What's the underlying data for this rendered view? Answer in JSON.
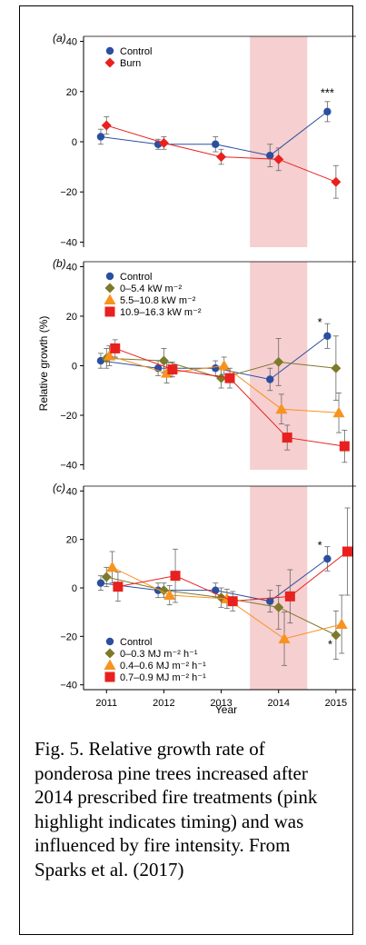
{
  "caption": "Fig. 5. Relative growth rate of ponderosa pine trees increased after 2014 prescribed fire treatments (pink highlight indicates timing) and was influenced by fire intensity. From Sparks et al. (2017)",
  "highlight_color": "#f6cfd0",
  "chart_data": [
    {
      "type": "line",
      "panel_label": "(a)",
      "ylabel": "Relative growth (%)",
      "xlabel": "Year",
      "x_ticks": [
        "2011",
        "2012",
        "2013",
        "2014",
        "2015"
      ],
      "ylim": [
        -42,
        42
      ],
      "y_ticks": [
        40,
        20,
        0,
        -20,
        -40
      ],
      "highlight_x": [
        2013.5,
        2014.5
      ],
      "legend_position": "top-left",
      "annotations": [
        {
          "text": "***",
          "x": 2014.85,
          "y": 18
        }
      ],
      "series": [
        {
          "name": "Control",
          "color": "#2b4fa0",
          "marker": "circle",
          "x": [
            2010.9,
            2011.9,
            2012.9,
            2013.85,
            2014.85
          ],
          "y": [
            2,
            -1,
            -1,
            -5.5,
            12
          ],
          "err": [
            3,
            2,
            3,
            4.5,
            4
          ]
        },
        {
          "name": "Burn",
          "color": "#e8211f",
          "marker": "diamond",
          "x": [
            2011.0,
            2012.0,
            2013.0,
            2014.0,
            2015.0
          ],
          "y": [
            6.5,
            -0.5,
            -6,
            -7,
            -16
          ],
          "err": [
            3.5,
            2.5,
            3,
            4.5,
            6.5
          ]
        }
      ]
    },
    {
      "type": "line",
      "panel_label": "(b)",
      "ylabel": "Relative growth (%)",
      "xlabel": "Year",
      "x_ticks": [
        "2011",
        "2012",
        "2013",
        "2014",
        "2015"
      ],
      "ylim": [
        -42,
        42
      ],
      "y_ticks": [
        40,
        20,
        0,
        -20,
        -40
      ],
      "highlight_x": [
        2013.5,
        2014.5
      ],
      "legend_position": "top-left",
      "annotations": [
        {
          "text": "*",
          "x": 2014.72,
          "y": 16
        }
      ],
      "series": [
        {
          "name": "Control",
          "color": "#2b4fa0",
          "marker": "circle",
          "x": [
            2010.9,
            2011.9,
            2012.9,
            2013.85,
            2014.85
          ],
          "y": [
            2,
            -1,
            -1,
            -5.5,
            12
          ],
          "err": [
            3,
            3,
            3,
            4.5,
            5
          ]
        },
        {
          "name": "0–5.4 kW m⁻²",
          "color": "#7d7a2a",
          "marker": "diamond",
          "x": [
            2011.0,
            2012.0,
            2013.0,
            2014.0,
            2015.0
          ],
          "y": [
            3,
            2,
            -5,
            1.5,
            -1
          ],
          "err": [
            4,
            5,
            4,
            9.5,
            13
          ]
        },
        {
          "name": "5.5–10.8 kW m⁻²",
          "color": "#f7931e",
          "marker": "triangle",
          "x": [
            2011.05,
            2012.05,
            2013.05,
            2014.05,
            2015.05
          ],
          "y": [
            4,
            -3,
            0,
            -17.5,
            -19
          ],
          "err": [
            4,
            4,
            3.5,
            6,
            8
          ]
        },
        {
          "name": "10.9–16.3 kW m⁻²",
          "color": "#e8211f",
          "marker": "square",
          "x": [
            2011.15,
            2012.15,
            2013.15,
            2014.15,
            2015.15
          ],
          "y": [
            7,
            -1.5,
            -5,
            -29,
            -32.5
          ],
          "err": [
            3.5,
            3,
            4,
            5,
            6.5
          ]
        }
      ]
    },
    {
      "type": "line",
      "panel_label": "(c)",
      "ylabel": "Relative growth (%)",
      "xlabel": "Year",
      "x_ticks": [
        "2011",
        "2012",
        "2013",
        "2014",
        "2015"
      ],
      "ylim": [
        -42,
        42
      ],
      "y_ticks": [
        40,
        20,
        0,
        -20,
        -40
      ],
      "highlight_x": [
        2013.5,
        2014.5
      ],
      "legend_position": "bottom-left",
      "annotations": [
        {
          "text": "*",
          "x": 2014.72,
          "y": 16
        },
        {
          "text": "*",
          "x": 2014.9,
          "y": -25
        }
      ],
      "series": [
        {
          "name": "Control",
          "color": "#2b4fa0",
          "marker": "circle",
          "x": [
            2010.9,
            2011.9,
            2012.9,
            2013.85,
            2014.85
          ],
          "y": [
            2,
            -1,
            -1,
            -5.5,
            12
          ],
          "err": [
            3,
            3,
            3,
            4.5,
            5
          ]
        },
        {
          "name": "0–0.3 MJ m⁻² h⁻¹",
          "color": "#7d7a2a",
          "marker": "diamond",
          "x": [
            2011.0,
            2012.0,
            2013.0,
            2014.0,
            2015.0
          ],
          "y": [
            4.5,
            -1,
            -4,
            -8,
            -19.5
          ],
          "err": [
            4,
            3,
            4,
            9,
            10
          ]
        },
        {
          "name": "0.4–0.6 MJ m⁻² h⁻¹",
          "color": "#f7931e",
          "marker": "triangle",
          "x": [
            2011.1,
            2012.1,
            2013.1,
            2014.1,
            2015.1
          ],
          "y": [
            8.5,
            -3,
            -4.5,
            -21,
            -15
          ],
          "err": [
            6.5,
            4,
            4,
            11,
            12
          ]
        },
        {
          "name": "0.7–0.9 MJ m⁻² h⁻¹",
          "color": "#e8211f",
          "marker": "square",
          "x": [
            2011.2,
            2012.2,
            2013.2,
            2014.2,
            2015.2
          ],
          "y": [
            0.5,
            5,
            -5.5,
            -3.5,
            15
          ],
          "err": [
            6,
            11,
            4,
            11,
            18
          ]
        }
      ]
    }
  ]
}
